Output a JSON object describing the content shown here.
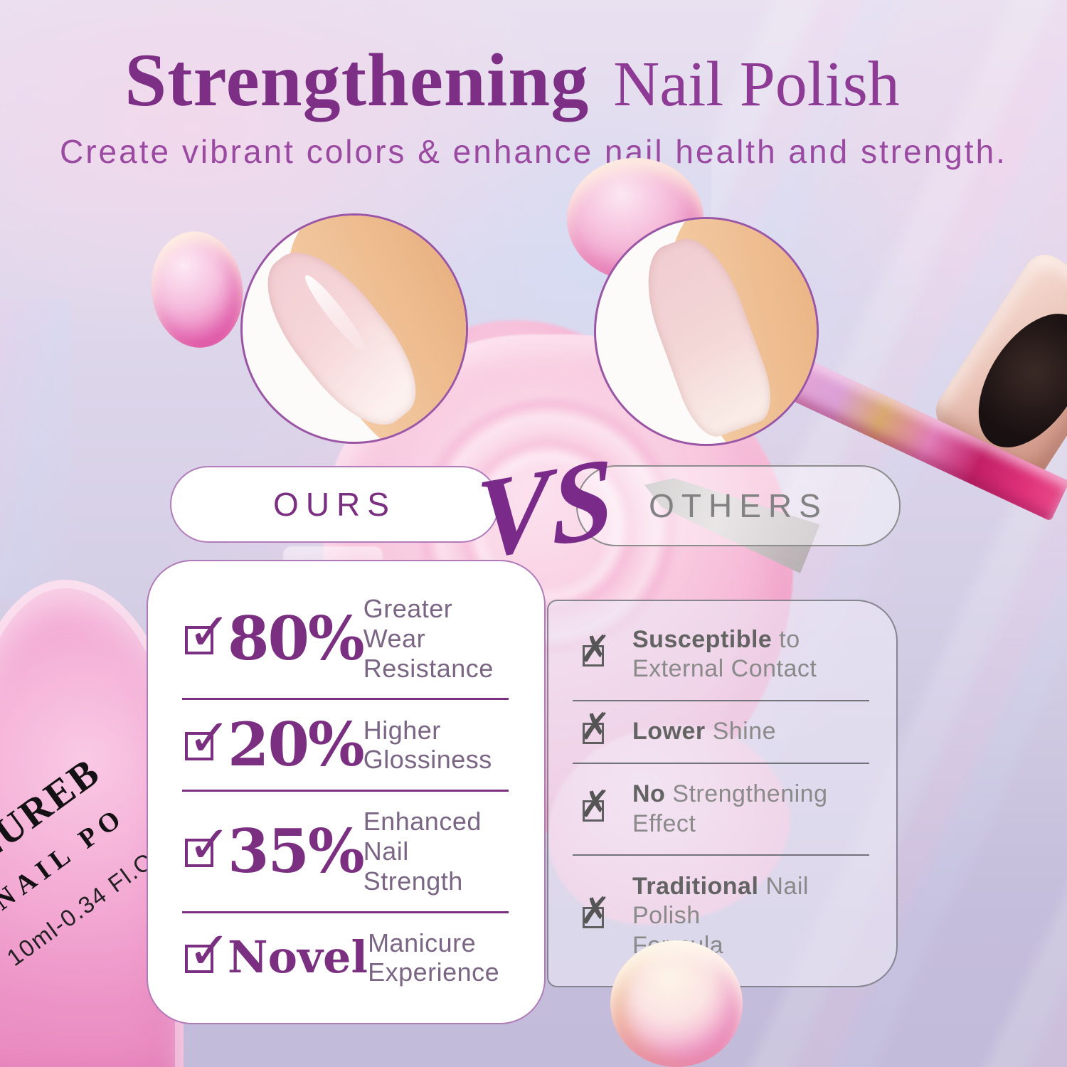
{
  "header": {
    "title_strong": "Strengthening",
    "title_light": "Nail Polish",
    "subtitle": "Create vibrant colors & enhance nail health and strength."
  },
  "comparison": {
    "ours_label": "OURS",
    "vs_label": "VS",
    "others_label": "OTHERS"
  },
  "ours_rows": [
    {
      "value": "80%",
      "line1": "Greater Wear",
      "line2": "Resistance"
    },
    {
      "value": "20%",
      "line1": "Higher",
      "line2": "Glossiness"
    },
    {
      "value": "35%",
      "line1": "Enhanced",
      "line2": "Nail Strength"
    },
    {
      "value": "Novel",
      "line1": "Manicure",
      "line2": "Experience"
    }
  ],
  "others_rows": [
    {
      "bold": "Susceptible",
      "rest": " to",
      "line2": "External Contact"
    },
    {
      "bold": "Lower",
      "rest": " Shine",
      "line2": ""
    },
    {
      "bold": "No",
      "rest": " Strengthening",
      "line2": "Effect"
    },
    {
      "bold": "Traditional",
      "rest": " Nail Polish",
      "line2": "Formula"
    }
  ],
  "bottle": {
    "brand": "AZUREB",
    "product": "NAIL PO",
    "volume": "10ml-0.34 Fl.O"
  },
  "icons": {
    "check": "✓",
    "cross": "✗"
  },
  "colors": {
    "accent_purple": "#7b2f80",
    "title_purple": "#7d2f86",
    "subtitle_purple": "#9a4aa0",
    "others_gray": "#828282",
    "background_lavender": "#c2bbd9",
    "splash_pink": "#f5b4d4"
  }
}
